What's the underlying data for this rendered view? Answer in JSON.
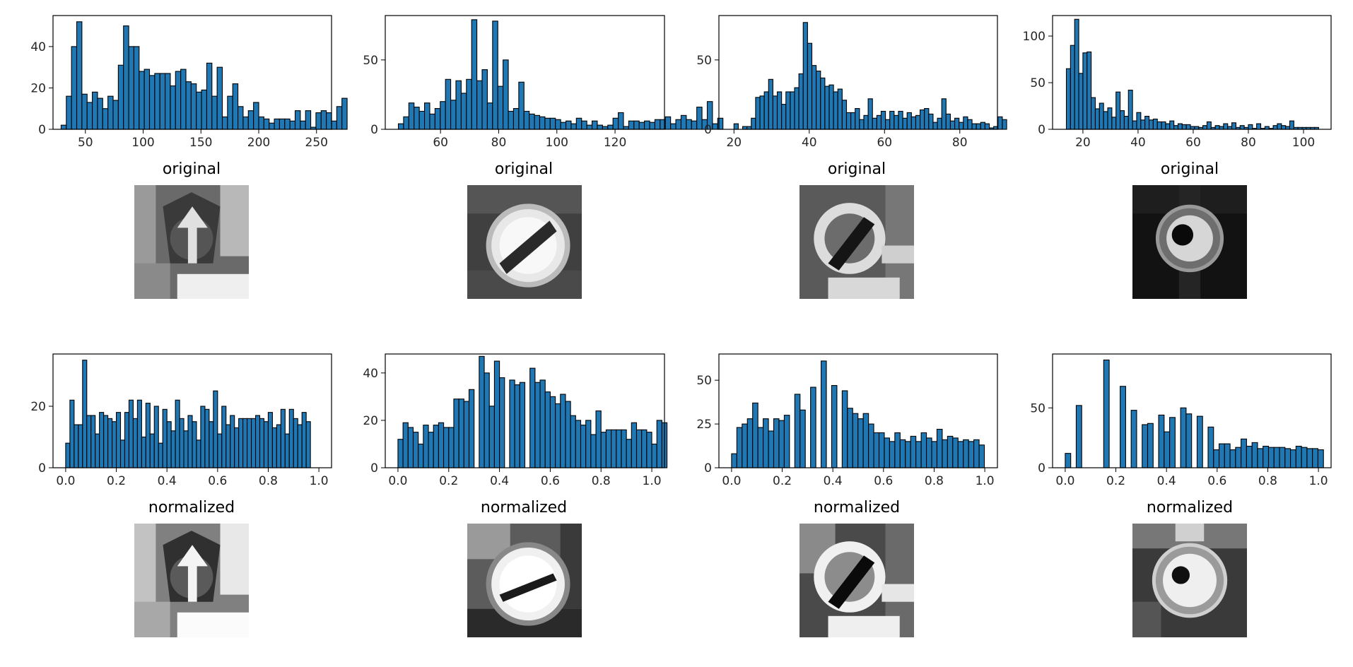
{
  "chart_data": [
    {
      "type": "bar",
      "title": "original",
      "xlabel": "",
      "ylabel": "",
      "bin_start": 29,
      "bin_width": 4.5,
      "xlim": [
        22,
        263
      ],
      "ylim": [
        0,
        55
      ],
      "xticks": [
        50,
        100,
        150,
        200,
        250
      ],
      "yticks": [
        0,
        20,
        40
      ],
      "values": [
        2,
        16,
        40,
        52,
        17,
        13,
        18,
        15,
        10,
        16,
        14,
        31,
        50,
        40,
        40,
        28,
        29,
        26,
        27,
        27,
        27,
        21,
        28,
        29,
        23,
        22,
        18,
        19,
        32,
        16,
        30,
        6,
        16,
        22,
        11,
        6,
        9,
        13,
        6,
        5,
        3,
        5,
        5,
        5,
        4,
        9,
        4,
        9,
        1,
        8,
        9,
        8,
        4,
        11,
        15
      ]
    },
    {
      "type": "bar",
      "title": "original",
      "xlabel": "",
      "ylabel": "",
      "bin_start": 45.5,
      "bin_width": 1.8,
      "xlim": [
        41,
        137
      ],
      "ylim": [
        0,
        82
      ],
      "xticks": [
        60,
        80,
        100,
        120
      ],
      "yticks": [
        0,
        50
      ],
      "values": [
        4,
        9,
        19,
        16,
        13,
        19,
        11,
        15,
        20,
        36,
        21,
        35,
        26,
        36,
        79,
        35,
        43,
        19,
        78,
        31,
        50,
        13,
        15,
        34,
        13,
        11,
        10,
        9,
        8,
        8,
        7,
        5,
        6,
        4,
        8,
        6,
        3,
        6,
        3,
        2,
        3,
        8,
        12,
        2,
        6,
        6,
        5,
        6,
        5,
        7,
        7,
        9,
        4,
        7,
        10,
        7,
        6,
        16,
        7,
        20,
        4,
        8
      ]
    },
    {
      "type": "bar",
      "title": "original",
      "xlabel": "",
      "ylabel": "",
      "bin_start": 20,
      "bin_width": 1.15,
      "xlim": [
        16,
        90
      ],
      "ylim": [
        0,
        82
      ],
      "xticks": [
        20,
        40,
        60,
        80
      ],
      "yticks": [
        0,
        50
      ],
      "values": [
        4,
        0,
        2,
        2,
        8,
        23,
        24,
        27,
        36,
        24,
        27,
        18,
        27,
        27,
        30,
        40,
        77,
        62,
        46,
        42,
        37,
        31,
        32,
        27,
        29,
        21,
        12,
        12,
        15,
        7,
        10,
        22,
        8,
        10,
        13,
        7,
        13,
        10,
        13,
        8,
        12,
        9,
        10,
        14,
        15,
        11,
        5,
        8,
        22,
        11,
        6,
        8,
        5,
        9,
        7,
        4,
        4,
        5,
        4,
        1,
        2,
        9,
        7
      ]
    },
    {
      "type": "bar",
      "title": "original",
      "xlabel": "",
      "ylabel": "",
      "bin_start": 14,
      "bin_width": 1.5,
      "xlim": [
        9,
        110
      ],
      "ylim": [
        0,
        122
      ],
      "xticks": [
        20,
        40,
        60,
        80,
        100
      ],
      "yticks": [
        0,
        50,
        100
      ],
      "values": [
        65,
        90,
        118,
        60,
        82,
        83,
        34,
        22,
        28,
        19,
        23,
        13,
        40,
        20,
        14,
        42,
        9,
        18,
        10,
        14,
        10,
        11,
        8,
        8,
        6,
        9,
        4,
        6,
        5,
        5,
        3,
        3,
        2,
        4,
        8,
        2,
        4,
        3,
        6,
        3,
        7,
        2,
        4,
        2,
        5,
        1,
        6,
        1,
        3,
        1,
        4,
        6,
        4,
        3,
        9,
        2,
        2,
        2,
        2,
        2,
        2
      ]
    },
    {
      "type": "bar",
      "title": "normalized",
      "xlabel": "",
      "ylabel": "",
      "bin_start": 0,
      "bin_width": 0.016666,
      "xlim": [
        -0.05,
        1.05
      ],
      "ylim": [
        0,
        37
      ],
      "xticks": [
        0.0,
        0.2,
        0.4,
        0.6,
        0.8,
        1.0
      ],
      "yticks": [
        0,
        20
      ],
      "values": [
        8,
        22,
        14,
        14,
        35,
        17,
        17,
        11,
        18,
        17,
        16,
        15,
        18,
        9,
        18,
        22,
        16,
        22,
        10,
        21,
        11,
        20,
        8,
        19,
        15,
        12,
        22,
        16,
        12,
        17,
        15,
        9,
        20,
        19,
        15,
        25,
        11,
        20,
        14,
        17,
        13,
        16,
        16,
        16,
        16,
        17,
        16,
        15,
        18,
        13,
        14,
        19,
        11,
        19,
        16,
        14,
        18,
        15
      ]
    },
    {
      "type": "bar",
      "title": "normalized",
      "xlabel": "",
      "ylabel": "",
      "bin_start": 0,
      "bin_width": 0.02,
      "xlim": [
        -0.05,
        1.05
      ],
      "ylim": [
        0,
        48
      ],
      "xticks": [
        0.0,
        0.2,
        0.4,
        0.6,
        0.8,
        1.0
      ],
      "yticks": [
        0,
        20,
        40
      ],
      "values": [
        12,
        19,
        17,
        15,
        10,
        18,
        15,
        18,
        19,
        17,
        17,
        29,
        29,
        28,
        33,
        0,
        47,
        40,
        26,
        45,
        38,
        0,
        37,
        35,
        36,
        0,
        42,
        36,
        37,
        32,
        30,
        27,
        31,
        28,
        22,
        20,
        18,
        20,
        14,
        24,
        15,
        16,
        16,
        16,
        16,
        12,
        19,
        16,
        16,
        15,
        10,
        20,
        19
      ]
    },
    {
      "type": "bar",
      "title": "normalized",
      "xlabel": "",
      "ylabel": "",
      "bin_start": 0,
      "bin_width": 0.0208,
      "xlim": [
        -0.05,
        1.05
      ],
      "ylim": [
        0,
        65
      ],
      "xticks": [
        0.0,
        0.2,
        0.4,
        0.6,
        0.8,
        1.0
      ],
      "yticks": [
        0,
        25,
        50
      ],
      "values": [
        8,
        23,
        25,
        28,
        37,
        23,
        28,
        21,
        28,
        27,
        30,
        0,
        42,
        33,
        0,
        46,
        0,
        61,
        0,
        47,
        0,
        44,
        34,
        31,
        28,
        31,
        25,
        20,
        20,
        17,
        15,
        20,
        16,
        15,
        18,
        15,
        20,
        17,
        15,
        22,
        16,
        18,
        17,
        15,
        16,
        15,
        16,
        13
      ]
    },
    {
      "type": "bar",
      "title": "normalized",
      "xlabel": "",
      "ylabel": "",
      "bin_start": 0,
      "bin_width": 0.0217,
      "xlim": [
        -0.05,
        1.05
      ],
      "ylim": [
        0,
        95
      ],
      "xticks": [
        0.0,
        0.2,
        0.4,
        0.6,
        0.8,
        1.0
      ],
      "yticks": [
        0,
        50
      ],
      "values": [
        12,
        0,
        52,
        0,
        0,
        0,
        0,
        90,
        0,
        0,
        68,
        0,
        48,
        0,
        36,
        37,
        0,
        44,
        30,
        42,
        0,
        50,
        45,
        0,
        43,
        0,
        34,
        15,
        20,
        20,
        15,
        17,
        24,
        18,
        21,
        16,
        18,
        17,
        17,
        17,
        16,
        15,
        18,
        17,
        16,
        16,
        15
      ]
    }
  ],
  "colors": {
    "bar_fill": "#1f77b4",
    "bar_edge": "#000000",
    "axis": "#000000",
    "text": "#262626"
  },
  "thumbnails": [
    {
      "row": "original",
      "index": 0,
      "description_icon": "traffic-sign-thumbnail"
    },
    {
      "row": "original",
      "index": 1,
      "description_icon": "traffic-sign-thumbnail"
    },
    {
      "row": "original",
      "index": 2,
      "description_icon": "traffic-sign-thumbnail"
    },
    {
      "row": "original",
      "index": 3,
      "description_icon": "traffic-sign-thumbnail"
    },
    {
      "row": "normalized",
      "index": 0,
      "description_icon": "traffic-sign-thumbnail"
    },
    {
      "row": "normalized",
      "index": 1,
      "description_icon": "traffic-sign-thumbnail"
    },
    {
      "row": "normalized",
      "index": 2,
      "description_icon": "traffic-sign-thumbnail"
    },
    {
      "row": "normalized",
      "index": 3,
      "description_icon": "traffic-sign-thumbnail"
    }
  ]
}
